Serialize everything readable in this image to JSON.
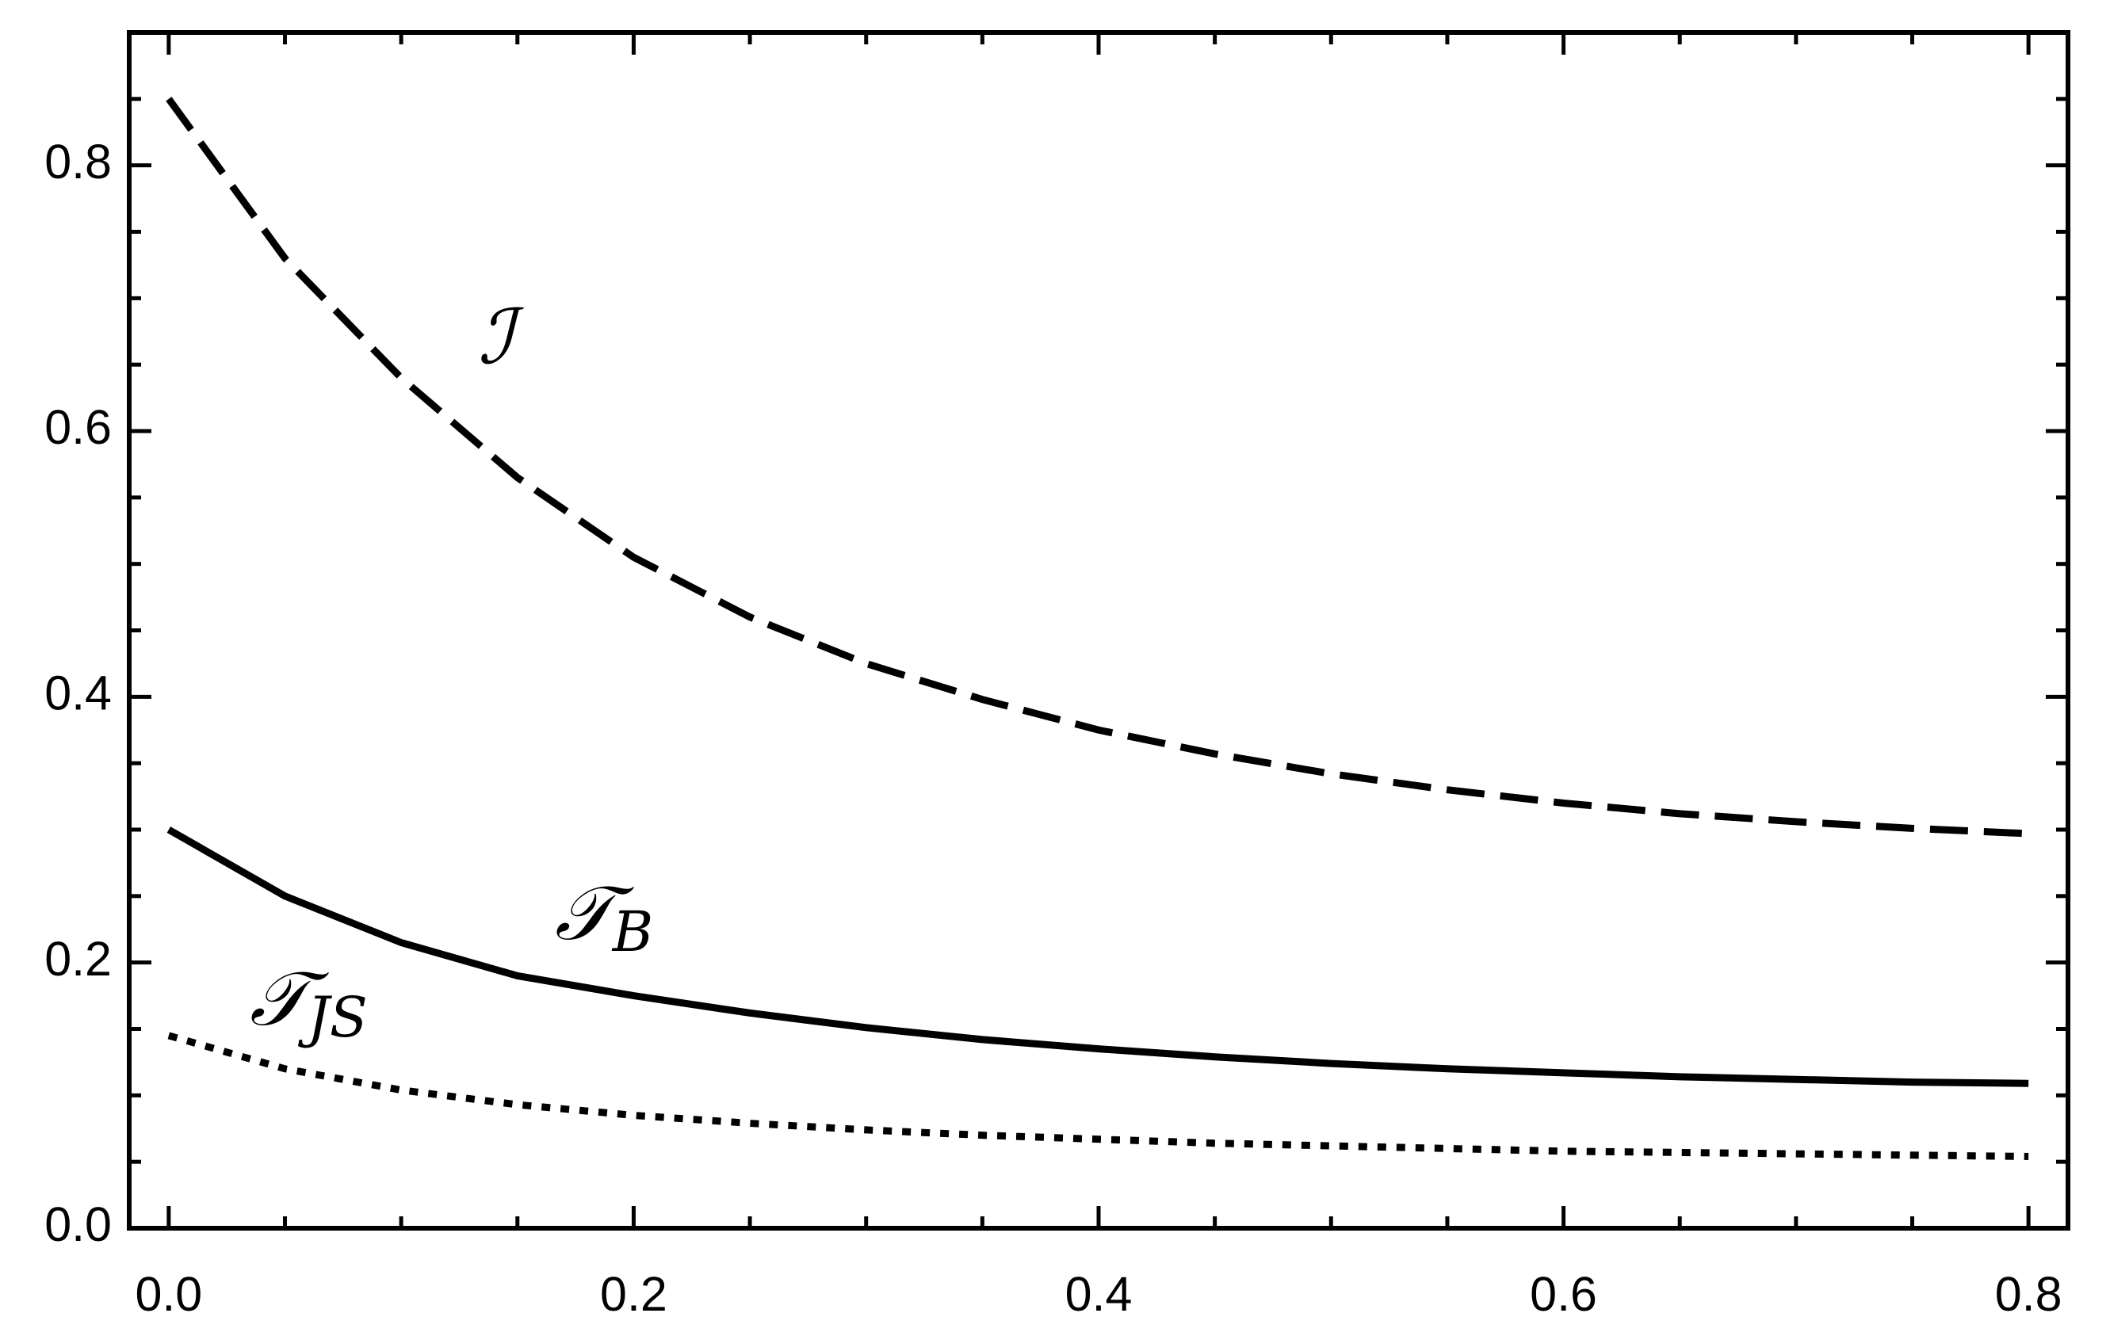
{
  "chart_data": {
    "type": "line",
    "x": [
      0,
      0.05,
      0.1,
      0.15,
      0.2,
      0.25,
      0.3,
      0.35,
      0.4,
      0.45,
      0.5,
      0.55,
      0.6,
      0.65,
      0.7,
      0.75,
      0.8
    ],
    "series": [
      {
        "name": "ℐ",
        "color": "#000000",
        "linestyle": "dashed",
        "values": [
          0.85,
          0.73,
          0.64,
          0.565,
          0.505,
          0.46,
          0.425,
          0.398,
          0.375,
          0.357,
          0.342,
          0.33,
          0.32,
          0.312,
          0.306,
          0.301,
          0.297
        ]
      },
      {
        "name": "𝒯",
        "subscript": "B",
        "color": "#000000",
        "linestyle": "solid",
        "values": [
          0.3,
          0.25,
          0.215,
          0.19,
          0.175,
          0.162,
          0.151,
          0.142,
          0.135,
          0.129,
          0.124,
          0.12,
          0.117,
          0.114,
          0.112,
          0.11,
          0.109
        ]
      },
      {
        "name": "𝒯",
        "subscript": "JS",
        "color": "#000000",
        "linestyle": "dotted",
        "values": [
          0.145,
          0.12,
          0.104,
          0.093,
          0.085,
          0.079,
          0.074,
          0.07,
          0.067,
          0.064,
          0.062,
          0.06,
          0.058,
          0.057,
          0.056,
          0.055,
          0.054
        ]
      }
    ],
    "xlim": [
      -0.017,
      0.817
    ],
    "ylim": [
      0,
      0.9
    ],
    "xticks": [
      {
        "value": 0,
        "label": "0.0"
      },
      0.2,
      0.4,
      0.6,
      0.8
    ],
    "yticks": [
      {
        "value": 0,
        "label": "0.0"
      },
      0.2,
      0.4,
      0.6,
      0.8
    ],
    "xminorticks": [
      0.05,
      0.1,
      0.15,
      0.25,
      0.3,
      0.35,
      0.45,
      0.5,
      0.55,
      0.65,
      0.7,
      0.75
    ],
    "yminorticks": [
      0.05,
      0.1,
      0.15,
      0.25,
      0.3,
      0.35,
      0.45,
      0.5,
      0.55,
      0.65,
      0.7,
      0.75,
      0.85
    ]
  }
}
